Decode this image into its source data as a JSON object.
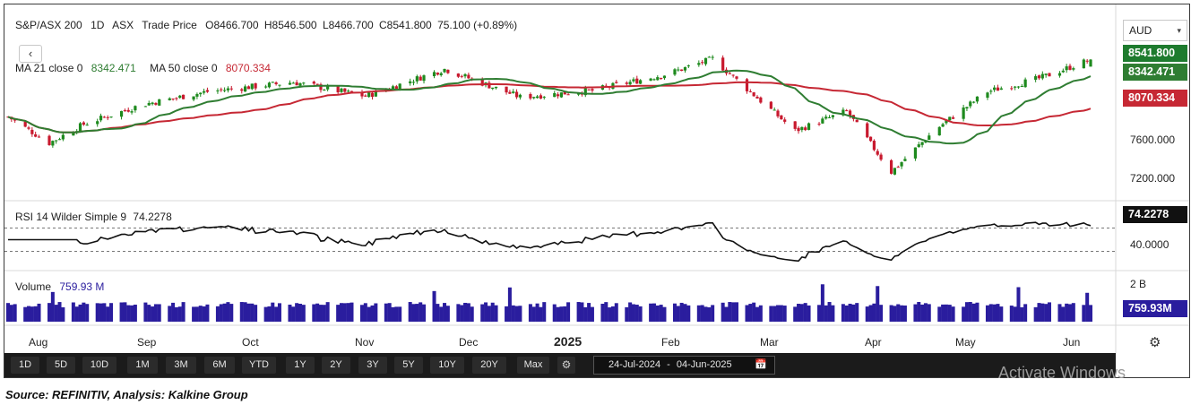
{
  "header": {
    "symbol": "S&P/ASX 200",
    "interval": "1D",
    "exchange": "ASX",
    "price_type": "Trade Price",
    "open": "O8466.700",
    "high": "H8546.500",
    "low": "L8466.700",
    "close": "C8541.800",
    "change": "75.100 (+0.89%)",
    "ma21_label": "MA 21 close 0",
    "ma21_value": "8342.471",
    "ma50_label": "MA 50 close 0",
    "ma50_value": "8070.334",
    "collapse_glyph": "‹"
  },
  "currency": {
    "selected": "AUD"
  },
  "price_axis": {
    "ticks": [
      "7600.000",
      "7200.000"
    ],
    "last_price": "8541.800",
    "ma21_tag": "8342.471",
    "ma50_tag": "8070.334"
  },
  "rsi": {
    "label": "RSI 14 Wilder Simple 9",
    "value": "74.2278",
    "tick": "40.0000"
  },
  "volume": {
    "label": "Volume",
    "value": "759.93 M",
    "tick": "2 B",
    "tag": "759.93M"
  },
  "x_axis": {
    "labels": [
      "Aug",
      "Sep",
      "Oct",
      "Nov",
      "Dec",
      "2025",
      "Feb",
      "Mar",
      "Apr",
      "May",
      "Jun"
    ]
  },
  "toolbar": {
    "ranges": [
      "1D",
      "5D",
      "10D",
      "1M",
      "3M",
      "6M",
      "YTD",
      "1Y",
      "2Y",
      "3Y",
      "5Y",
      "10Y",
      "20Y",
      "Max"
    ],
    "date_from": "24-Jul-2024",
    "date_sep": "-",
    "date_to": "04-Jun-2025"
  },
  "watermark": "Activate Windows",
  "source": "Source: REFINITIV, Analysis: Kalkine Group",
  "colors": {
    "up": "#1e8a1e",
    "down": "#c8192e",
    "ma21": "#2f7d32",
    "ma50": "#c62834",
    "volume": "#2a1d9e",
    "rsi": "#111111"
  },
  "icons": [
    "settings-icon",
    "gear-icon",
    "calendar-icon",
    "chevron-down-icon",
    "collapse-icon"
  ],
  "chart_data": {
    "type": "candlestick",
    "title": "S&P/ASX 200",
    "period": "1D",
    "x_range": [
      "24-Jul-2024",
      "04-Jun-2025"
    ],
    "ylim": [
      7100,
      8700
    ],
    "last": {
      "open": 8466.7,
      "high": 8546.5,
      "low": 8466.7,
      "close": 8541.8,
      "change": 75.1,
      "change_pct": 0.89
    },
    "closes_approx": [
      {
        "date": "2024-07-24",
        "value": 7930
      },
      {
        "date": "2024-08-05",
        "value": 7650
      },
      {
        "date": "2024-08-15",
        "value": 7850
      },
      {
        "date": "2024-09-01",
        "value": 8060
      },
      {
        "date": "2024-09-20",
        "value": 8200
      },
      {
        "date": "2024-10-15",
        "value": 8300
      },
      {
        "date": "2024-11-05",
        "value": 8150
      },
      {
        "date": "2024-11-28",
        "value": 8440
      },
      {
        "date": "2024-12-20",
        "value": 8140
      },
      {
        "date": "2025-01-10",
        "value": 8210
      },
      {
        "date": "2025-02-01",
        "value": 8390
      },
      {
        "date": "2025-02-14",
        "value": 8550
      },
      {
        "date": "2025-03-10",
        "value": 7780
      },
      {
        "date": "2025-03-25",
        "value": 7990
      },
      {
        "date": "2025-04-07",
        "value": 7340
      },
      {
        "date": "2025-04-20",
        "value": 7800
      },
      {
        "date": "2025-05-05",
        "value": 8200
      },
      {
        "date": "2025-05-20",
        "value": 8340
      },
      {
        "date": "2025-06-04",
        "value": 8541.8
      }
    ],
    "series": [
      {
        "name": "MA 21 close 0",
        "last": 8342.471
      },
      {
        "name": "MA 50 close 0",
        "last": 8070.334
      }
    ],
    "rsi": {
      "name": "RSI 14 Wilder Simple 9",
      "last": 74.2278
    },
    "volume": {
      "name": "Volume",
      "last_millions": 759.93
    }
  }
}
